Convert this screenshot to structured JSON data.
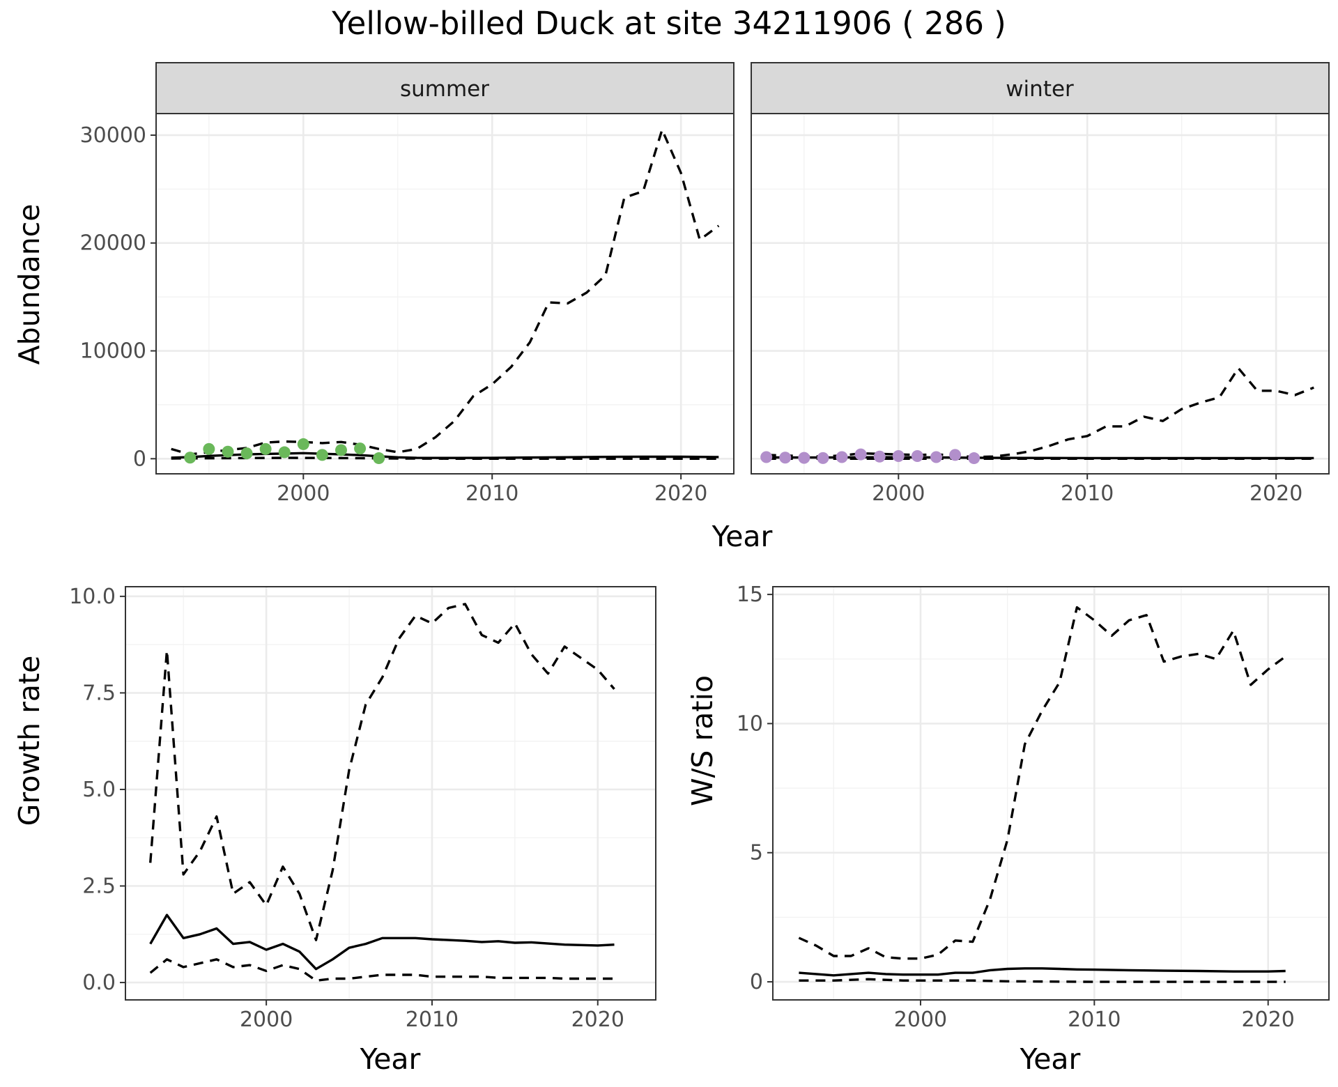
{
  "title": "Yellow-billed Duck at site 34211906 ( 286 )",
  "colors": {
    "summer_points": "#6ab85a",
    "winter_points": "#b28fcb",
    "lines": "#000000",
    "strip": "#d9d9d9"
  },
  "chart_data": [
    {
      "type": "line",
      "id": "abundance",
      "facets": [
        "summer",
        "winter"
      ],
      "xlabel": "Year",
      "ylabel": "Abundance",
      "xlim": [
        1992.2,
        2022.8
      ],
      "ylim": [
        -1400,
        32000
      ],
      "x_ticks": [
        2000,
        2010,
        2020
      ],
      "y_ticks": [
        0,
        10000,
        20000,
        30000
      ],
      "grid": true,
      "panels": [
        {
          "facet": "summer",
          "series": [
            {
              "style": "solid",
              "x": [
                1993,
                1994,
                1995,
                1996,
                1997,
                1998,
                1999,
                2000,
                2001,
                2002,
                2003,
                2004,
                2005,
                2006,
                2008,
                2010,
                2012,
                2014,
                2016,
                2018,
                2020,
                2022
              ],
              "y": [
                100,
                150,
                260,
                330,
                400,
                450,
                480,
                520,
                460,
                400,
                330,
                230,
                130,
                80,
                70,
                80,
                110,
                140,
                170,
                190,
                180,
                160
              ]
            },
            {
              "style": "dashed",
              "x": [
                1993,
                1994,
                1995,
                1996,
                1997,
                1998,
                1999,
                2000,
                2001,
                2002,
                2003,
                2004,
                2005,
                2006,
                2007,
                2008,
                2009,
                2010,
                2011,
                2012,
                2013,
                2014,
                2015,
                2016,
                2017,
                2018,
                2019,
                2020,
                2021,
                2022
              ],
              "y": [
                900,
                400,
                600,
                800,
                1000,
                1500,
                1600,
                1550,
                1450,
                1550,
                1300,
                900,
                600,
                900,
                2000,
                3500,
                5800,
                6900,
                8500,
                10800,
                14500,
                14400,
                15400,
                17000,
                24200,
                24800,
                30500,
                26500,
                20300,
                21600
              ]
            },
            {
              "style": "dashed",
              "x": [
                1993,
                1995,
                1997,
                1999,
                2001,
                2003,
                2005,
                2008,
                2012,
                2016,
                2020,
                2022
              ],
              "y": [
                20,
                40,
                60,
                80,
                70,
                50,
                20,
                5,
                0,
                0,
                0,
                0
              ]
            }
          ],
          "points": {
            "x": [
              1994,
              1995,
              1996,
              1997,
              1998,
              1999,
              2000,
              2001,
              2002,
              2003,
              2004
            ],
            "y": [
              100,
              900,
              650,
              500,
              900,
              600,
              1350,
              350,
              800,
              950,
              50
            ]
          }
        },
        {
          "facet": "winter",
          "series": [
            {
              "style": "solid",
              "x": [
                1993,
                1996,
                1999,
                2002,
                2005,
                2010,
                2015,
                2022
              ],
              "y": [
                120,
                110,
                140,
                120,
                80,
                60,
                60,
                60
              ]
            },
            {
              "style": "dashed",
              "x": [
                1993,
                1994,
                1995,
                1996,
                1997,
                1998,
                1999,
                2000,
                2001,
                2002,
                2003,
                2004,
                2005,
                2006,
                2007,
                2008,
                2009,
                2010,
                2011,
                2012,
                2013,
                2014,
                2015,
                2016,
                2017,
                2018,
                2019,
                2020,
                2021,
                2022
              ],
              "y": [
                350,
                300,
                250,
                200,
                300,
                500,
                450,
                400,
                350,
                400,
                300,
                150,
                200,
                400,
                700,
                1200,
                1800,
                2100,
                3000,
                3000,
                3900,
                3500,
                4600,
                5200,
                5700,
                8400,
                6300,
                6300,
                5900,
                6600
              ]
            },
            {
              "style": "dashed",
              "x": [
                1993,
                2000,
                2004,
                2010,
                2022
              ],
              "y": [
                0,
                0,
                0,
                0,
                0
              ]
            }
          ],
          "points": {
            "x": [
              1993,
              1994,
              1995,
              1996,
              1997,
              1998,
              1999,
              2000,
              2001,
              2002,
              2003,
              2004
            ],
            "y": [
              150,
              100,
              80,
              60,
              150,
              400,
              200,
              250,
              250,
              150,
              350,
              50
            ]
          }
        }
      ]
    },
    {
      "type": "line",
      "id": "growth",
      "xlabel": "Year",
      "ylabel": "Growth rate",
      "xlim": [
        1991.5,
        2023.5
      ],
      "ylim": [
        -0.45,
        10.25
      ],
      "x_ticks": [
        2000,
        2010,
        2020
      ],
      "y_ticks": [
        0.0,
        2.5,
        5.0,
        7.5,
        10.0
      ],
      "grid": true,
      "series": [
        {
          "style": "solid",
          "x": [
            1993,
            1994,
            1995,
            1996,
            1997,
            1998,
            1999,
            2000,
            2001,
            2002,
            2003,
            2004,
            2005,
            2006,
            2007,
            2008,
            2009,
            2010,
            2011,
            2012,
            2013,
            2014,
            2015,
            2016,
            2017,
            2018,
            2019,
            2020,
            2021
          ],
          "y": [
            1.0,
            1.75,
            1.15,
            1.25,
            1.4,
            1.0,
            1.05,
            0.85,
            1.0,
            0.8,
            0.35,
            0.6,
            0.9,
            1.0,
            1.15,
            1.15,
            1.15,
            1.12,
            1.1,
            1.08,
            1.05,
            1.07,
            1.03,
            1.04,
            1.01,
            0.98,
            0.97,
            0.96,
            0.98
          ]
        },
        {
          "style": "dashed",
          "x": [
            1993,
            1994,
            1995,
            1996,
            1997,
            1998,
            1999,
            2000,
            2001,
            2002,
            2003,
            2004,
            2005,
            2006,
            2007,
            2008,
            2009,
            2010,
            2011,
            2012,
            2013,
            2014,
            2015,
            2016,
            2017,
            2018,
            2019,
            2020,
            2021
          ],
          "y": [
            3.1,
            8.6,
            2.8,
            3.4,
            4.3,
            2.3,
            2.6,
            2.0,
            3.0,
            2.3,
            1.1,
            2.9,
            5.5,
            7.2,
            7.9,
            8.9,
            9.5,
            9.3,
            9.7,
            9.8,
            9.0,
            8.8,
            9.3,
            8.5,
            8.0,
            8.7,
            8.4,
            8.1,
            7.6
          ]
        },
        {
          "style": "dashed",
          "x": [
            1993,
            1994,
            1995,
            1996,
            1997,
            1998,
            1999,
            2000,
            2001,
            2002,
            2003,
            2004,
            2005,
            2006,
            2007,
            2008,
            2009,
            2010,
            2011,
            2012,
            2013,
            2014,
            2015,
            2016,
            2017,
            2018,
            2019,
            2020,
            2021
          ],
          "y": [
            0.25,
            0.6,
            0.4,
            0.5,
            0.6,
            0.4,
            0.45,
            0.3,
            0.45,
            0.35,
            0.05,
            0.1,
            0.1,
            0.15,
            0.2,
            0.2,
            0.2,
            0.15,
            0.15,
            0.15,
            0.15,
            0.12,
            0.12,
            0.12,
            0.12,
            0.1,
            0.1,
            0.1,
            0.1
          ]
        }
      ]
    },
    {
      "type": "line",
      "id": "ws",
      "xlabel": "Year",
      "ylabel": "W/S ratio",
      "xlim": [
        1991.5,
        2023.5
      ],
      "ylim": [
        -0.7,
        15.3
      ],
      "x_ticks": [
        2000,
        2010,
        2020
      ],
      "y_ticks": [
        0,
        5,
        10,
        15
      ],
      "grid": true,
      "series": [
        {
          "style": "solid",
          "x": [
            1993,
            1994,
            1995,
            1996,
            1997,
            1998,
            1999,
            2000,
            2001,
            2002,
            2003,
            2004,
            2005,
            2006,
            2007,
            2008,
            2009,
            2010,
            2012,
            2014,
            2016,
            2018,
            2020,
            2021
          ],
          "y": [
            0.35,
            0.3,
            0.25,
            0.3,
            0.35,
            0.3,
            0.28,
            0.28,
            0.28,
            0.35,
            0.35,
            0.45,
            0.5,
            0.52,
            0.52,
            0.5,
            0.48,
            0.47,
            0.45,
            0.43,
            0.42,
            0.4,
            0.4,
            0.42
          ]
        },
        {
          "style": "dashed",
          "x": [
            1993,
            1994,
            1995,
            1996,
            1997,
            1998,
            1999,
            2000,
            2001,
            2002,
            2003,
            2004,
            2005,
            2006,
            2007,
            2008,
            2009,
            2010,
            2011,
            2012,
            2013,
            2014,
            2015,
            2016,
            2017,
            2018,
            2019,
            2020,
            2021
          ],
          "y": [
            1.7,
            1.4,
            1.0,
            1.0,
            1.3,
            0.95,
            0.9,
            0.9,
            1.05,
            1.6,
            1.55,
            3.2,
            5.5,
            9.2,
            10.5,
            11.6,
            14.5,
            14.0,
            13.4,
            14.0,
            14.2,
            12.4,
            12.6,
            12.7,
            12.5,
            13.6,
            11.5,
            12.1,
            12.6
          ]
        },
        {
          "style": "dashed",
          "x": [
            1993,
            1995,
            1997,
            1999,
            2001,
            2003,
            2005,
            2010,
            2015,
            2021
          ],
          "y": [
            0.05,
            0.05,
            0.1,
            0.05,
            0.05,
            0.05,
            0.02,
            0.0,
            0.0,
            0.0
          ]
        }
      ]
    }
  ]
}
